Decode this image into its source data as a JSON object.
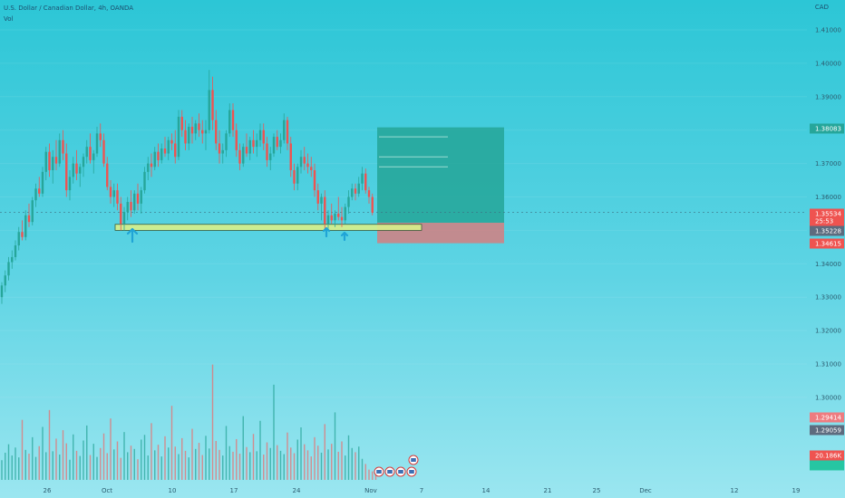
{
  "header": {
    "title": "U.S. Dollar / Canadian Dollar, 4h, OANDA",
    "volume_label": "Vol"
  },
  "chart_data": {
    "type": "candlestick",
    "symbol": "U.S. Dollar / Canadian Dollar",
    "timeframe": "4h",
    "source": "OANDA",
    "currency": "CAD",
    "y_ticks": [
      1.41,
      1.4,
      1.39,
      1.38,
      1.37,
      1.36,
      1.35,
      1.34,
      1.33,
      1.32,
      1.31,
      1.3
    ],
    "y_tick_labels": [
      "1.41000",
      "1.40000",
      "1.39000",
      "1.38000",
      "1.37000",
      "1.36000",
      "1.35000",
      "1.34000",
      "1.33000",
      "1.32000",
      "1.31000",
      "1.30000"
    ],
    "ylim": [
      1.2935,
      1.4145
    ],
    "x_ticks": [
      "26",
      "Oct",
      "10",
      "17",
      "24",
      "Nov",
      "7",
      "14",
      "21",
      "25",
      "Dec",
      "12",
      "19"
    ],
    "price_tags": [
      {
        "label": "1.38083",
        "color": "#26a69a"
      },
      {
        "label": "1.35534",
        "color": "#ef5350"
      },
      {
        "label": "25:53",
        "color": "#ef5350"
      },
      {
        "label": "1.35228",
        "color": "#5d6b7e"
      },
      {
        "label": "1.34615",
        "color": "#ef5350"
      },
      {
        "label": "1.29414",
        "color": "#ee7c80"
      },
      {
        "label": "1.29059",
        "color": "#5d6b7e"
      },
      {
        "label": "20.186K",
        "color": "#ef5350"
      },
      {
        "label": "",
        "color": "#26c6a2"
      }
    ],
    "candles_ohlc": [
      [
        1.33,
        1.3345,
        1.328,
        1.3335
      ],
      [
        1.3335,
        1.338,
        1.3315,
        1.3365
      ],
      [
        1.3365,
        1.342,
        1.335,
        1.3405
      ],
      [
        1.3405,
        1.344,
        1.3385,
        1.342
      ],
      [
        1.342,
        1.347,
        1.341,
        1.3455
      ],
      [
        1.3455,
        1.351,
        1.344,
        1.3495
      ],
      [
        1.3495,
        1.353,
        1.347,
        1.348
      ],
      [
        1.348,
        1.356,
        1.347,
        1.3545
      ],
      [
        1.3545,
        1.358,
        1.351,
        1.3525
      ],
      [
        1.3525,
        1.36,
        1.3515,
        1.359
      ],
      [
        1.359,
        1.364,
        1.357,
        1.3625
      ],
      [
        1.3625,
        1.366,
        1.36,
        1.361
      ],
      [
        1.361,
        1.369,
        1.36,
        1.3675
      ],
      [
        1.3675,
        1.375,
        1.365,
        1.3735
      ],
      [
        1.3735,
        1.376,
        1.366,
        1.368
      ],
      [
        1.368,
        1.374,
        1.364,
        1.372
      ],
      [
        1.372,
        1.377,
        1.368,
        1.37
      ],
      [
        1.37,
        1.379,
        1.369,
        1.377
      ],
      [
        1.377,
        1.38,
        1.371,
        1.373
      ],
      [
        1.373,
        1.376,
        1.36,
        1.362
      ],
      [
        1.362,
        1.368,
        1.359,
        1.366
      ],
      [
        1.366,
        1.372,
        1.364,
        1.37
      ],
      [
        1.37,
        1.374,
        1.365,
        1.367
      ],
      [
        1.367,
        1.37,
        1.363,
        1.369
      ],
      [
        1.369,
        1.373,
        1.366,
        1.372
      ],
      [
        1.372,
        1.377,
        1.37,
        1.375
      ],
      [
        1.375,
        1.379,
        1.37,
        1.371
      ],
      [
        1.371,
        1.374,
        1.367,
        1.373
      ],
      [
        1.373,
        1.381,
        1.372,
        1.379
      ],
      [
        1.379,
        1.382,
        1.375,
        1.377
      ],
      [
        1.377,
        1.379,
        1.369,
        1.37
      ],
      [
        1.37,
        1.372,
        1.362,
        1.363
      ],
      [
        1.363,
        1.365,
        1.358,
        1.36
      ],
      [
        1.36,
        1.364,
        1.357,
        1.362
      ],
      [
        1.362,
        1.364,
        1.356,
        1.358
      ],
      [
        1.358,
        1.36,
        1.35,
        1.352
      ],
      [
        1.352,
        1.357,
        1.35,
        1.3555
      ],
      [
        1.3555,
        1.36,
        1.353,
        1.3585
      ],
      [
        1.3585,
        1.362,
        1.354,
        1.356
      ],
      [
        1.356,
        1.362,
        1.355,
        1.361
      ],
      [
        1.361,
        1.364,
        1.356,
        1.358
      ],
      [
        1.358,
        1.363,
        1.355,
        1.362
      ],
      [
        1.362,
        1.369,
        1.361,
        1.3675
      ],
      [
        1.3675,
        1.372,
        1.365,
        1.37
      ],
      [
        1.37,
        1.373,
        1.366,
        1.369
      ],
      [
        1.369,
        1.375,
        1.368,
        1.3735
      ],
      [
        1.3735,
        1.376,
        1.369,
        1.371
      ],
      [
        1.371,
        1.376,
        1.37,
        1.3745
      ],
      [
        1.3745,
        1.378,
        1.372,
        1.373
      ],
      [
        1.373,
        1.378,
        1.371,
        1.377
      ],
      [
        1.377,
        1.379,
        1.374,
        1.376
      ],
      [
        1.376,
        1.38,
        1.37,
        1.372
      ],
      [
        1.372,
        1.386,
        1.371,
        1.384
      ],
      [
        1.384,
        1.386,
        1.378,
        1.38
      ],
      [
        1.38,
        1.383,
        1.374,
        1.376
      ],
      [
        1.376,
        1.382,
        1.374,
        1.381
      ],
      [
        1.381,
        1.384,
        1.376,
        1.379
      ],
      [
        1.379,
        1.383,
        1.377,
        1.382
      ],
      [
        1.382,
        1.385,
        1.378,
        1.38
      ],
      [
        1.38,
        1.383,
        1.376,
        1.379
      ],
      [
        1.379,
        1.383,
        1.374,
        1.38
      ],
      [
        1.38,
        1.398,
        1.379,
        1.392
      ],
      [
        1.392,
        1.396,
        1.38,
        1.383
      ],
      [
        1.383,
        1.386,
        1.374,
        1.376
      ],
      [
        1.376,
        1.38,
        1.37,
        1.373
      ],
      [
        1.373,
        1.376,
        1.37,
        1.374
      ],
      [
        1.374,
        1.38,
        1.372,
        1.379
      ],
      [
        1.379,
        1.388,
        1.378,
        1.386
      ],
      [
        1.386,
        1.388,
        1.378,
        1.38
      ],
      [
        1.38,
        1.382,
        1.372,
        1.374
      ],
      [
        1.374,
        1.376,
        1.368,
        1.37
      ],
      [
        1.37,
        1.376,
        1.369,
        1.375
      ],
      [
        1.375,
        1.379,
        1.372,
        1.373
      ],
      [
        1.373,
        1.378,
        1.371,
        1.377
      ],
      [
        1.377,
        1.38,
        1.373,
        1.375
      ],
      [
        1.375,
        1.379,
        1.372,
        1.377
      ],
      [
        1.377,
        1.382,
        1.375,
        1.38
      ],
      [
        1.38,
        1.382,
        1.374,
        1.376
      ],
      [
        1.376,
        1.378,
        1.369,
        1.371
      ],
      [
        1.371,
        1.375,
        1.368,
        1.373
      ],
      [
        1.373,
        1.379,
        1.372,
        1.378
      ],
      [
        1.378,
        1.38,
        1.374,
        1.375
      ],
      [
        1.375,
        1.379,
        1.373,
        1.377
      ],
      [
        1.377,
        1.385,
        1.376,
        1.383
      ],
      [
        1.383,
        1.384,
        1.374,
        1.376
      ],
      [
        1.376,
        1.378,
        1.366,
        1.368
      ],
      [
        1.368,
        1.37,
        1.362,
        1.364
      ],
      [
        1.364,
        1.37,
        1.362,
        1.369
      ],
      [
        1.369,
        1.374,
        1.367,
        1.372
      ],
      [
        1.372,
        1.375,
        1.368,
        1.37
      ],
      [
        1.37,
        1.373,
        1.367,
        1.369
      ],
      [
        1.369,
        1.372,
        1.366,
        1.368
      ],
      [
        1.368,
        1.37,
        1.36,
        1.362
      ],
      [
        1.362,
        1.364,
        1.356,
        1.358
      ],
      [
        1.358,
        1.361,
        1.353,
        1.36
      ],
      [
        1.36,
        1.362,
        1.35,
        1.352
      ],
      [
        1.352,
        1.356,
        1.3505,
        1.3545
      ],
      [
        1.3545,
        1.358,
        1.352,
        1.353
      ],
      [
        1.353,
        1.356,
        1.351,
        1.355
      ],
      [
        1.355,
        1.36,
        1.353,
        1.354
      ],
      [
        1.354,
        1.357,
        1.351,
        1.353
      ],
      [
        1.353,
        1.358,
        1.352,
        1.357
      ],
      [
        1.357,
        1.362,
        1.355,
        1.36
      ],
      [
        1.36,
        1.364,
        1.359,
        1.3625
      ],
      [
        1.3625,
        1.364,
        1.359,
        1.361
      ],
      [
        1.361,
        1.366,
        1.36,
        1.364
      ],
      [
        1.364,
        1.369,
        1.362,
        1.367
      ],
      [
        1.367,
        1.3685,
        1.361,
        1.362
      ],
      [
        1.362,
        1.363,
        1.358,
        1.36
      ],
      [
        1.36,
        1.361,
        1.3545,
        1.3553
      ]
    ],
    "volume": [
      4200,
      5800,
      7600,
      5200,
      6900,
      4800,
      12800,
      6400,
      5600,
      9100,
      4900,
      7200,
      11300,
      5900,
      14900,
      6100,
      8800,
      5400,
      10600,
      7800,
      4300,
      9700,
      6200,
      5100,
      8400,
      11600,
      5300,
      7700,
      4900,
      6800,
      9900,
      5700,
      13100,
      6500,
      8200,
      4700,
      10200,
      5900,
      7300,
      6600,
      4400,
      8600,
      9600,
      5200,
      12100,
      6300,
      7500,
      5000,
      9300,
      6900,
      15800,
      7100,
      5500,
      8900,
      6200,
      4800,
      10900,
      6600,
      7900,
      5300,
      9400,
      6700,
      24600,
      8300,
      6400,
      5200,
      11500,
      7200,
      6000,
      8700,
      5600,
      13600,
      7000,
      5900,
      9800,
      6100,
      12600,
      5400,
      8000,
      6800,
      20300,
      7400,
      6200,
      5500,
      10100,
      6900,
      5700,
      8600,
      11200,
      7600,
      6300,
      5000,
      9100,
      7300,
      5800,
      11900,
      6500,
      7700,
      14400,
      6000,
      8200,
      5200,
      9500,
      6800,
      5900,
      7100,
      4500,
      3400,
      2200,
      1800,
      1500
    ],
    "volume_max": 28000,
    "drawings": {
      "support_zone": [
        1.35,
        1.3518
      ],
      "position_entry": 1.35228,
      "position_stop": 1.34615,
      "position_target": 1.38083,
      "target_levels": [
        1.378,
        1.372,
        1.369
      ]
    }
  }
}
